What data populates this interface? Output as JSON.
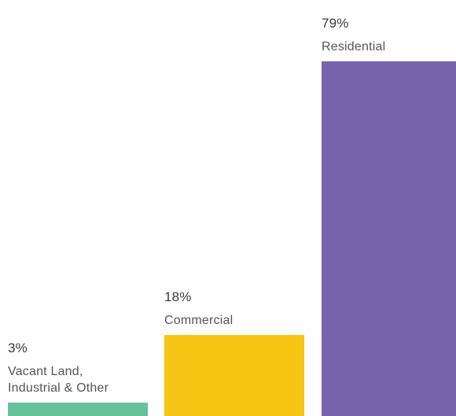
{
  "chart_data": {
    "type": "bar",
    "categories": [
      "Vacant Land,\nIndustrial & Other",
      "Commercial",
      "Residential"
    ],
    "values": [
      3,
      18,
      79
    ],
    "value_labels": [
      "3%",
      "18%",
      "79%"
    ],
    "colors": [
      "#66c29d",
      "#f7c514",
      "#7764ad"
    ],
    "unit": "%",
    "ylim": [
      0,
      79
    ],
    "grid": false,
    "legend": "none",
    "title": "",
    "xlabel": "",
    "ylabel": ""
  }
}
